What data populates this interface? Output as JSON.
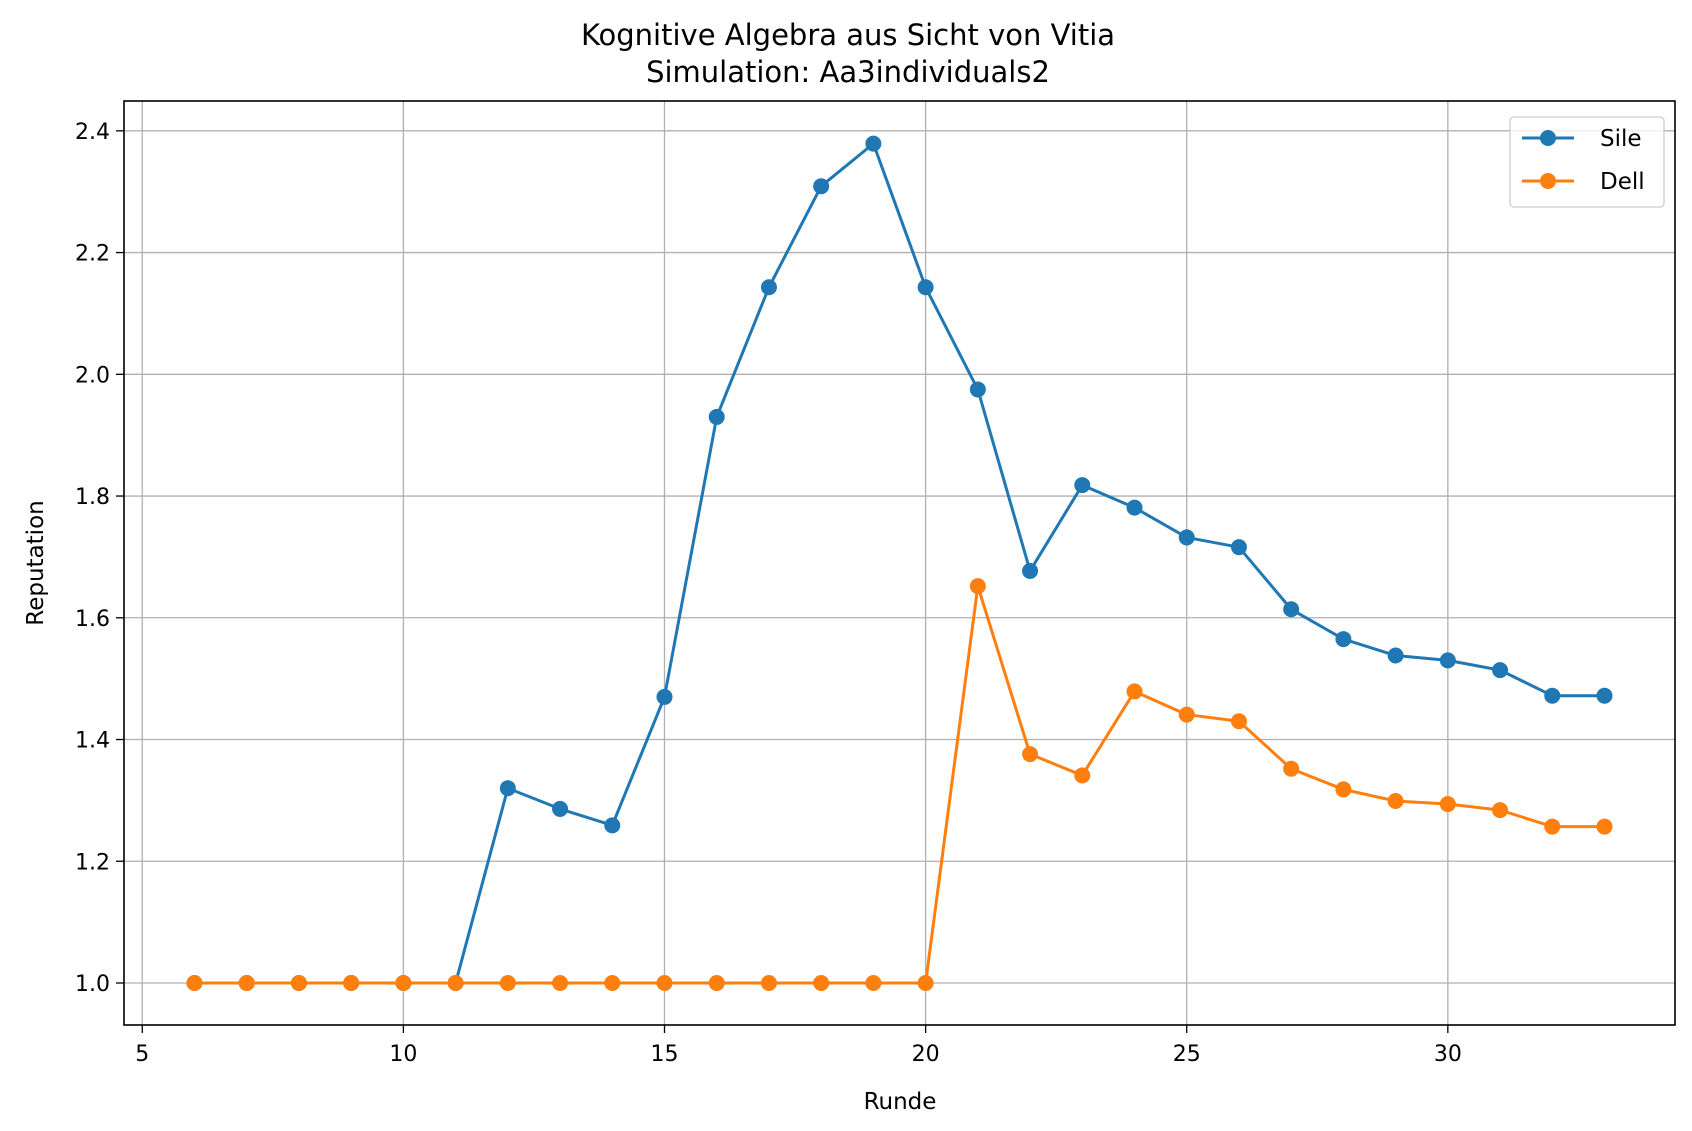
{
  "chart_data": {
    "type": "line",
    "title": "Kognitive Algebra aus Sicht von Vitia",
    "subtitle": "Simulation: Aa3individuals2",
    "xlabel": "Runde",
    "ylabel": "Reputation",
    "xlim": [
      4.65,
      34.35
    ],
    "ylim": [
      0.931,
      2.449
    ],
    "xticks": [
      5,
      10,
      15,
      20,
      25,
      30
    ],
    "xtick_labels": [
      "5",
      "10",
      "15",
      "20",
      "25",
      "30"
    ],
    "yticks": [
      1.0,
      1.2,
      1.4,
      1.6,
      1.8,
      2.0,
      2.2,
      2.4
    ],
    "ytick_labels": [
      "1.0",
      "1.2",
      "1.4",
      "1.6",
      "1.8",
      "2.0",
      "2.2",
      "2.4"
    ],
    "grid": true,
    "legend_position": "top-right",
    "x": [
      6,
      7,
      8,
      9,
      10,
      11,
      12,
      13,
      14,
      15,
      16,
      17,
      18,
      19,
      20,
      21,
      22,
      23,
      24,
      25,
      26,
      27,
      28,
      29,
      30,
      31,
      32,
      33
    ],
    "series": [
      {
        "name": "Sile",
        "color": "#1f77b4",
        "values": [
          1.0,
          1.0,
          1.0,
          1.0,
          1.0,
          1.0,
          1.32,
          1.286,
          1.259,
          1.47,
          1.93,
          2.143,
          2.309,
          2.379,
          2.143,
          1.975,
          1.677,
          1.818,
          1.781,
          1.732,
          1.716,
          1.614,
          1.565,
          1.538,
          1.53,
          1.514,
          1.472,
          1.472
        ]
      },
      {
        "name": "Dell",
        "color": "#ff7f0e",
        "values": [
          1.0,
          1.0,
          1.0,
          1.0,
          1.0,
          1.0,
          1.0,
          1.0,
          1.0,
          1.0,
          1.0,
          1.0,
          1.0,
          1.0,
          1.0,
          1.652,
          1.376,
          1.341,
          1.479,
          1.441,
          1.43,
          1.352,
          1.318,
          1.299,
          1.294,
          1.284,
          1.257,
          1.257
        ]
      }
    ]
  }
}
